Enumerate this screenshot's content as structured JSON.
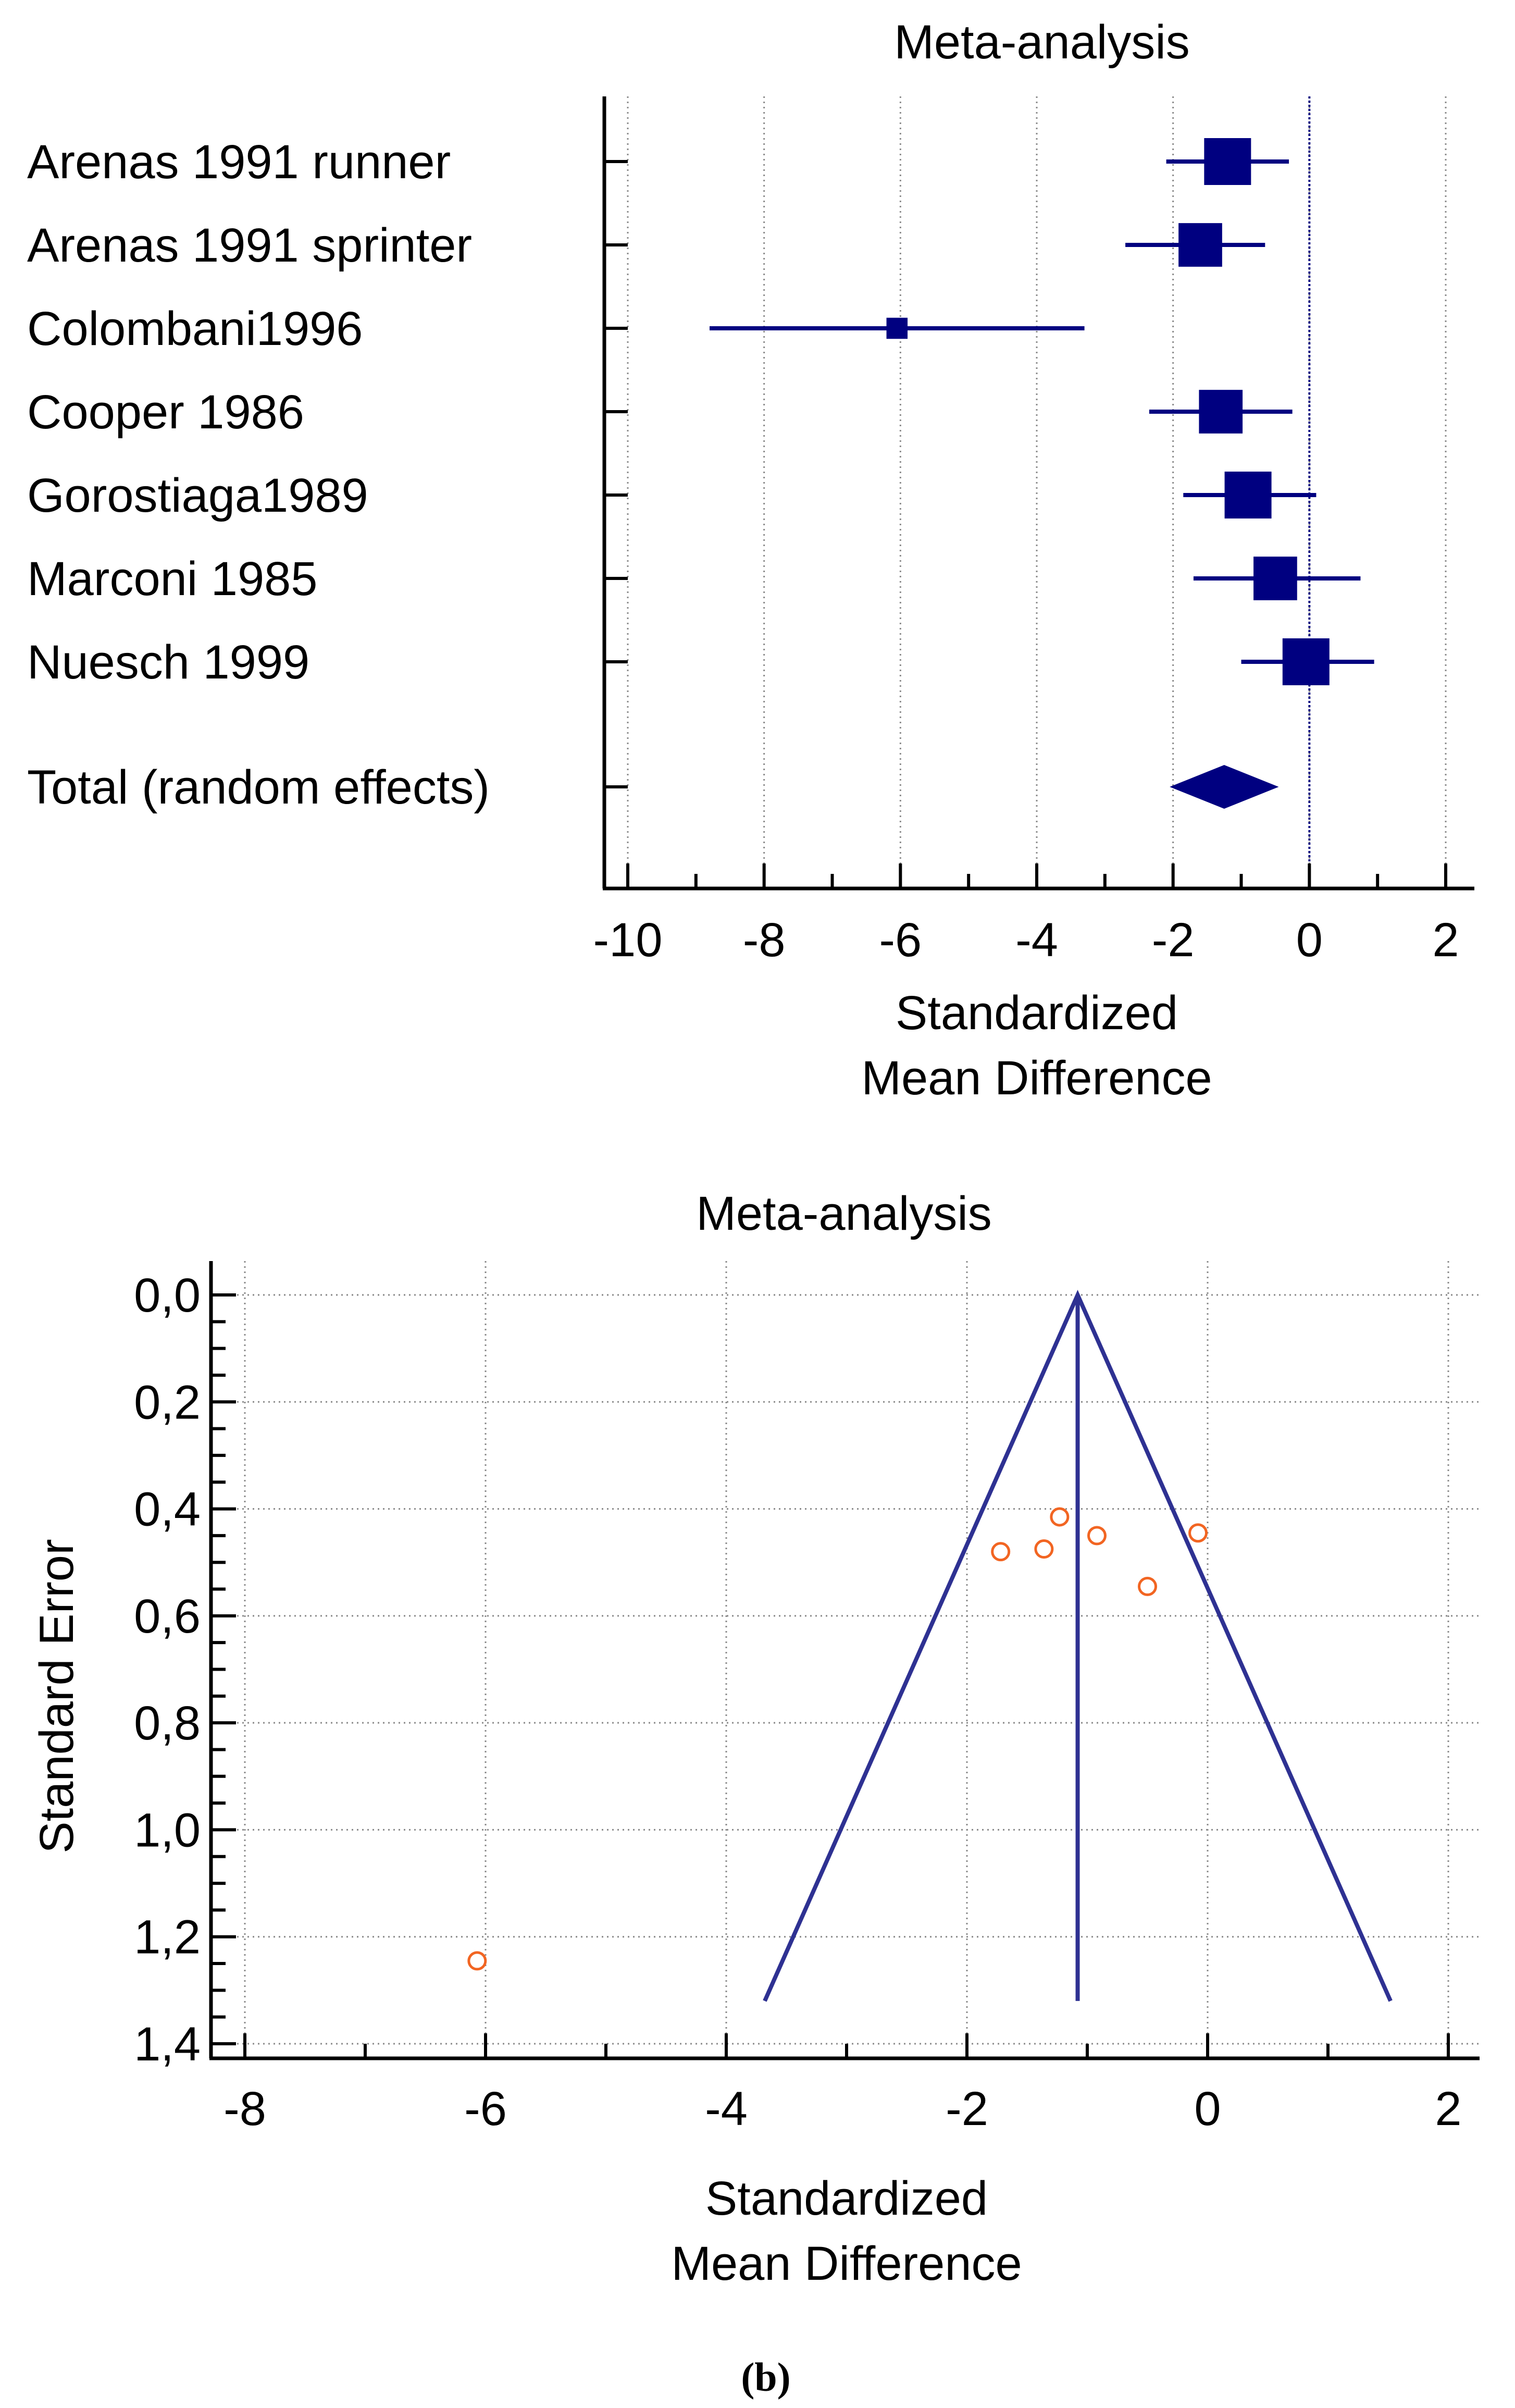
{
  "chart_data": [
    {
      "type": "forest",
      "title": "Meta-analysis",
      "xlabel_line1": "Standardized",
      "xlabel_line2": "Mean Difference",
      "xlim": [
        -10.5,
        2.5
      ],
      "xticks": [
        -10,
        -8,
        -6,
        -4,
        -2,
        0,
        2
      ],
      "reference_line": 0,
      "color": "#000080",
      "studies": [
        {
          "label": "Arenas 1991 runner",
          "smd": -1.2,
          "ci_low": -2.1,
          "ci_high": -0.3,
          "weight": 1.0
        },
        {
          "label": "Arenas 1991  sprinter",
          "smd": -1.6,
          "ci_low": -2.7,
          "ci_high": -0.65,
          "weight": 0.93
        },
        {
          "label": "Colombani1996",
          "smd": -6.05,
          "ci_low": -8.8,
          "ci_high": -3.3,
          "weight": 0.45
        },
        {
          "label": "Cooper 1986",
          "smd": -1.3,
          "ci_low": -2.35,
          "ci_high": -0.25,
          "weight": 0.93
        },
        {
          "label": "Gorostiaga1989",
          "smd": -0.9,
          "ci_low": -1.85,
          "ci_high": 0.1,
          "weight": 1.0
        },
        {
          "label": "Marconi 1985",
          "smd": -0.5,
          "ci_low": -1.7,
          "ci_high": 0.75,
          "weight": 0.93
        },
        {
          "label": "Nuesch 1999",
          "smd": -0.05,
          "ci_low": -1.0,
          "ci_high": 0.95,
          "weight": 1.0
        }
      ],
      "total": {
        "label": "Total (random effects)",
        "smd": -1.25,
        "ci_low": -2.05,
        "ci_high": -0.45
      }
    },
    {
      "type": "funnel",
      "title": "Meta-analysis",
      "xlabel_line1": "Standardized",
      "xlabel_line2": "Mean Difference",
      "ylabel": "Standard Error",
      "xlim": [
        -8.3,
        2.2
      ],
      "ylim": [
        0,
        1.45
      ],
      "xticks": [
        -8,
        -6,
        -4,
        -2,
        0,
        2
      ],
      "yticks": [
        0.0,
        0.2,
        0.4,
        0.6,
        0.8,
        1.0,
        1.2,
        1.4
      ],
      "ytick_labels": [
        "0,0",
        "0,2",
        "0,4",
        "0,6",
        "0,8",
        "1,0",
        "1,2",
        "1,4"
      ],
      "pooled_smd": -1.08,
      "funnel_apex": {
        "x": -1.08,
        "se": 0.0
      },
      "funnel_left_bottom": {
        "x": -3.68,
        "se": 1.32
      },
      "funnel_right_bottom": {
        "x": 1.52,
        "se": 1.32
      },
      "line_color": "#2e3192",
      "point_color": "#f26522",
      "points": [
        {
          "x": -1.23,
          "se": 0.415
        },
        {
          "x": -1.72,
          "se": 0.48
        },
        {
          "x": -1.36,
          "se": 0.475
        },
        {
          "x": -0.92,
          "se": 0.45
        },
        {
          "x": -0.08,
          "se": 0.445
        },
        {
          "x": -0.5,
          "se": 0.545
        },
        {
          "x": -6.07,
          "se": 1.245
        }
      ]
    }
  ],
  "caption": "(b)"
}
